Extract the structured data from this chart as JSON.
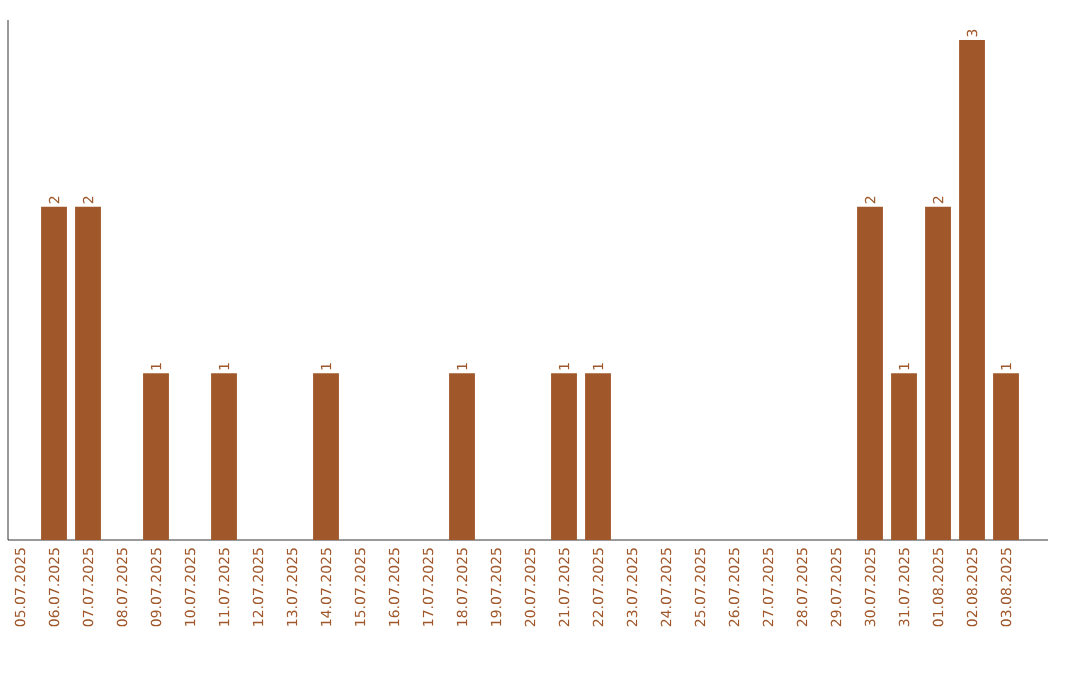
{
  "chart_data": {
    "type": "bar",
    "categories": [
      "05.07.2025",
      "06.07.2025",
      "07.07.2025",
      "08.07.2025",
      "09.07.2025",
      "10.07.2025",
      "11.07.2025",
      "12.07.2025",
      "13.07.2025",
      "14.07.2025",
      "15.07.2025",
      "16.07.2025",
      "17.07.2025",
      "18.07.2025",
      "19.07.2025",
      "20.07.2025",
      "21.07.2025",
      "22.07.2025",
      "23.07.2025",
      "24.07.2025",
      "25.07.2025",
      "26.07.2025",
      "27.07.2025",
      "28.07.2025",
      "29.07.2025",
      "30.07.2025",
      "31.07.2025",
      "01.08.2025",
      "02.08.2025",
      "03.08.2025"
    ],
    "values": [
      0,
      2,
      2,
      0,
      1,
      0,
      1,
      0,
      0,
      1,
      0,
      0,
      0,
      1,
      0,
      0,
      1,
      1,
      0,
      0,
      0,
      0,
      0,
      0,
      0,
      2,
      1,
      2,
      3,
      1
    ],
    "value_labels": [
      null,
      "2",
      "2",
      null,
      "1",
      null,
      "1",
      null,
      null,
      "1",
      null,
      null,
      null,
      "1",
      null,
      null,
      "1",
      "1",
      null,
      null,
      null,
      null,
      null,
      null,
      null,
      "2",
      "1",
      "2",
      "3",
      "1"
    ],
    "color": "#a0572a",
    "tick_labels": "x"
  }
}
